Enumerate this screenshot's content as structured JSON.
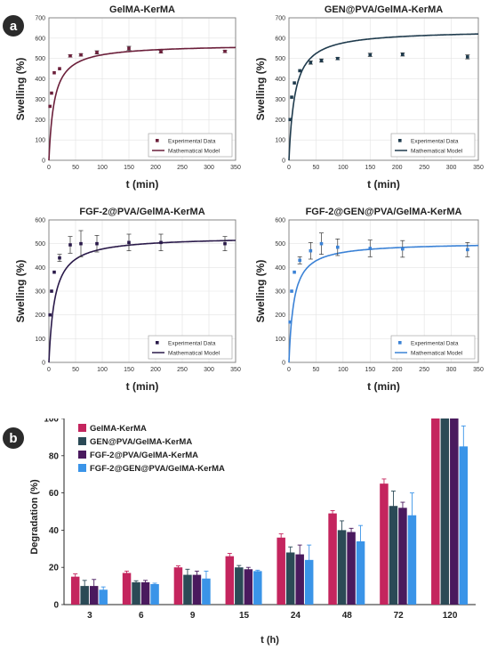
{
  "panel_labels": {
    "a": "a",
    "b": "b"
  },
  "chart_data": [
    {
      "type": "scatter",
      "title": "GelMA-KerMA",
      "xlabel": "t (min)",
      "ylabel": "Swelling (%)",
      "xlim": [
        0,
        350
      ],
      "ylim": [
        0,
        700
      ],
      "xticks": [
        "0",
        "50",
        "100",
        "150",
        "200",
        "250",
        "300",
        "350"
      ],
      "yticks": [
        "0",
        "100",
        "200",
        "300",
        "400",
        "500",
        "600",
        "700"
      ],
      "legend": {
        "points": "Experimental Data",
        "line": "Mathematical Model"
      },
      "legend_position": "bottom-right",
      "color": "#6b1f3a",
      "points": [
        {
          "x": 2,
          "y": 265,
          "err": 0
        },
        {
          "x": 5,
          "y": 330,
          "err": 0
        },
        {
          "x": 10,
          "y": 430,
          "err": 0
        },
        {
          "x": 20,
          "y": 450,
          "err": 0
        },
        {
          "x": 40,
          "y": 513,
          "err": 6
        },
        {
          "x": 60,
          "y": 518,
          "err": 6
        },
        {
          "x": 90,
          "y": 530,
          "err": 8
        },
        {
          "x": 150,
          "y": 550,
          "err": 10
        },
        {
          "x": 210,
          "y": 533,
          "err": 6
        },
        {
          "x": 330,
          "y": 535,
          "err": 6
        }
      ],
      "model": {
        "smax": 570,
        "k": 10
      }
    },
    {
      "type": "scatter",
      "title": "GEN@PVA/GelMA-KerMA",
      "xlabel": "t (min)",
      "ylabel": "Swelling (%)",
      "xlim": [
        0,
        350
      ],
      "ylim": [
        0,
        700
      ],
      "xticks": [
        "0",
        "50",
        "100",
        "150",
        "200",
        "250",
        "300",
        "350"
      ],
      "yticks": [
        "0",
        "100",
        "200",
        "300",
        "400",
        "500",
        "600",
        "700"
      ],
      "legend": {
        "points": "Experimental Data",
        "line": "Mathematical Model"
      },
      "legend_position": "bottom-right",
      "color": "#1f3b4d",
      "points": [
        {
          "x": 2,
          "y": 200,
          "err": 0
        },
        {
          "x": 5,
          "y": 310,
          "err": 0
        },
        {
          "x": 10,
          "y": 380,
          "err": 0
        },
        {
          "x": 20,
          "y": 440,
          "err": 0
        },
        {
          "x": 40,
          "y": 480,
          "err": 8
        },
        {
          "x": 60,
          "y": 490,
          "err": 8
        },
        {
          "x": 90,
          "y": 500,
          "err": 6
        },
        {
          "x": 150,
          "y": 518,
          "err": 8
        },
        {
          "x": 210,
          "y": 520,
          "err": 8
        },
        {
          "x": 330,
          "y": 508,
          "err": 10
        }
      ],
      "model": {
        "smax": 640,
        "k": 11
      }
    },
    {
      "type": "scatter",
      "title": "FGF-2@PVA/GelMA-KerMA",
      "xlabel": "t (min)",
      "ylabel": "Swelling (%)",
      "xlim": [
        0,
        350
      ],
      "ylim": [
        0,
        600
      ],
      "xticks": [
        "0",
        "50",
        "100",
        "150",
        "200",
        "250",
        "300",
        "350"
      ],
      "yticks": [
        "0",
        "100",
        "200",
        "300",
        "400",
        "500",
        "600"
      ],
      "legend": {
        "points": "Experimental Data",
        "line": "Mathematical Model"
      },
      "legend_position": "bottom-right",
      "color": "#2a1a4a",
      "points": [
        {
          "x": 2,
          "y": 200,
          "err": 0
        },
        {
          "x": 5,
          "y": 300,
          "err": 0
        },
        {
          "x": 10,
          "y": 380,
          "err": 0
        },
        {
          "x": 20,
          "y": 440,
          "err": 15
        },
        {
          "x": 40,
          "y": 495,
          "err": 35
        },
        {
          "x": 60,
          "y": 500,
          "err": 55
        },
        {
          "x": 90,
          "y": 500,
          "err": 35
        },
        {
          "x": 150,
          "y": 505,
          "err": 35
        },
        {
          "x": 210,
          "y": 505,
          "err": 35
        },
        {
          "x": 330,
          "y": 500,
          "err": 30
        }
      ],
      "model": {
        "smax": 530,
        "k": 11
      }
    },
    {
      "type": "scatter",
      "title": "FGF-2@GEN@PVA/GelMA-KerMA",
      "xlabel": "t (min)",
      "ylabel": "Swelling (%)",
      "xlim": [
        0,
        350
      ],
      "ylim": [
        0,
        600
      ],
      "xticks": [
        "0",
        "50",
        "100",
        "150",
        "200",
        "250",
        "300",
        "350"
      ],
      "yticks": [
        "0",
        "100",
        "200",
        "300",
        "400",
        "500",
        "600"
      ],
      "legend": {
        "points": "Experimental Data",
        "line": "Mathematical Model"
      },
      "legend_position": "bottom-right",
      "color": "#3b82d6",
      "points": [
        {
          "x": 2,
          "y": 170,
          "err": 0
        },
        {
          "x": 5,
          "y": 300,
          "err": 0
        },
        {
          "x": 10,
          "y": 380,
          "err": 0
        },
        {
          "x": 20,
          "y": 430,
          "err": 15
        },
        {
          "x": 40,
          "y": 470,
          "err": 35
        },
        {
          "x": 60,
          "y": 500,
          "err": 45
        },
        {
          "x": 90,
          "y": 485,
          "err": 35
        },
        {
          "x": 150,
          "y": 480,
          "err": 35
        },
        {
          "x": 210,
          "y": 478,
          "err": 35
        },
        {
          "x": 330,
          "y": 475,
          "err": 30
        }
      ],
      "model": {
        "smax": 505,
        "k": 9
      }
    },
    {
      "type": "bar",
      "title": "",
      "xlabel": "t (h)",
      "ylabel": "Degradation (%)",
      "ylim": [
        0,
        100
      ],
      "yticks": [
        "0",
        "20",
        "40",
        "60",
        "80",
        "100"
      ],
      "legend_position": "top-left",
      "categories": [
        "3",
        "6",
        "9",
        "15",
        "24",
        "48",
        "72",
        "120"
      ],
      "series": [
        {
          "name": "GelMA-KerMA",
          "color": "#c4255e",
          "values": [
            15,
            17,
            20,
            26,
            36,
            49,
            65,
            100
          ],
          "errors": [
            1.5,
            1,
            0.8,
            1.5,
            2,
            1.5,
            2.5,
            0
          ]
        },
        {
          "name": "GEN@PVA/GelMA-KerMA",
          "color": "#2b4a56",
          "values": [
            10,
            12,
            16,
            20,
            28,
            40,
            53,
            100
          ],
          "errors": [
            3,
            0.8,
            3,
            1,
            3,
            5,
            8,
            0
          ]
        },
        {
          "name": "FGF-2@PVA/GelMA-KerMA",
          "color": "#4a1a5e",
          "values": [
            10,
            12,
            16,
            19,
            27,
            39,
            52,
            100
          ],
          "errors": [
            3.5,
            1,
            2,
            1,
            5,
            2,
            3,
            0
          ]
        },
        {
          "name": "FGF-2@GEN@PVA/GelMA-KerMA",
          "color": "#3a94e8",
          "values": [
            8,
            11,
            14,
            18,
            24,
            34,
            48,
            85
          ],
          "errors": [
            1.5,
            0.5,
            4,
            0.5,
            8,
            8.5,
            12,
            11
          ]
        }
      ]
    }
  ]
}
